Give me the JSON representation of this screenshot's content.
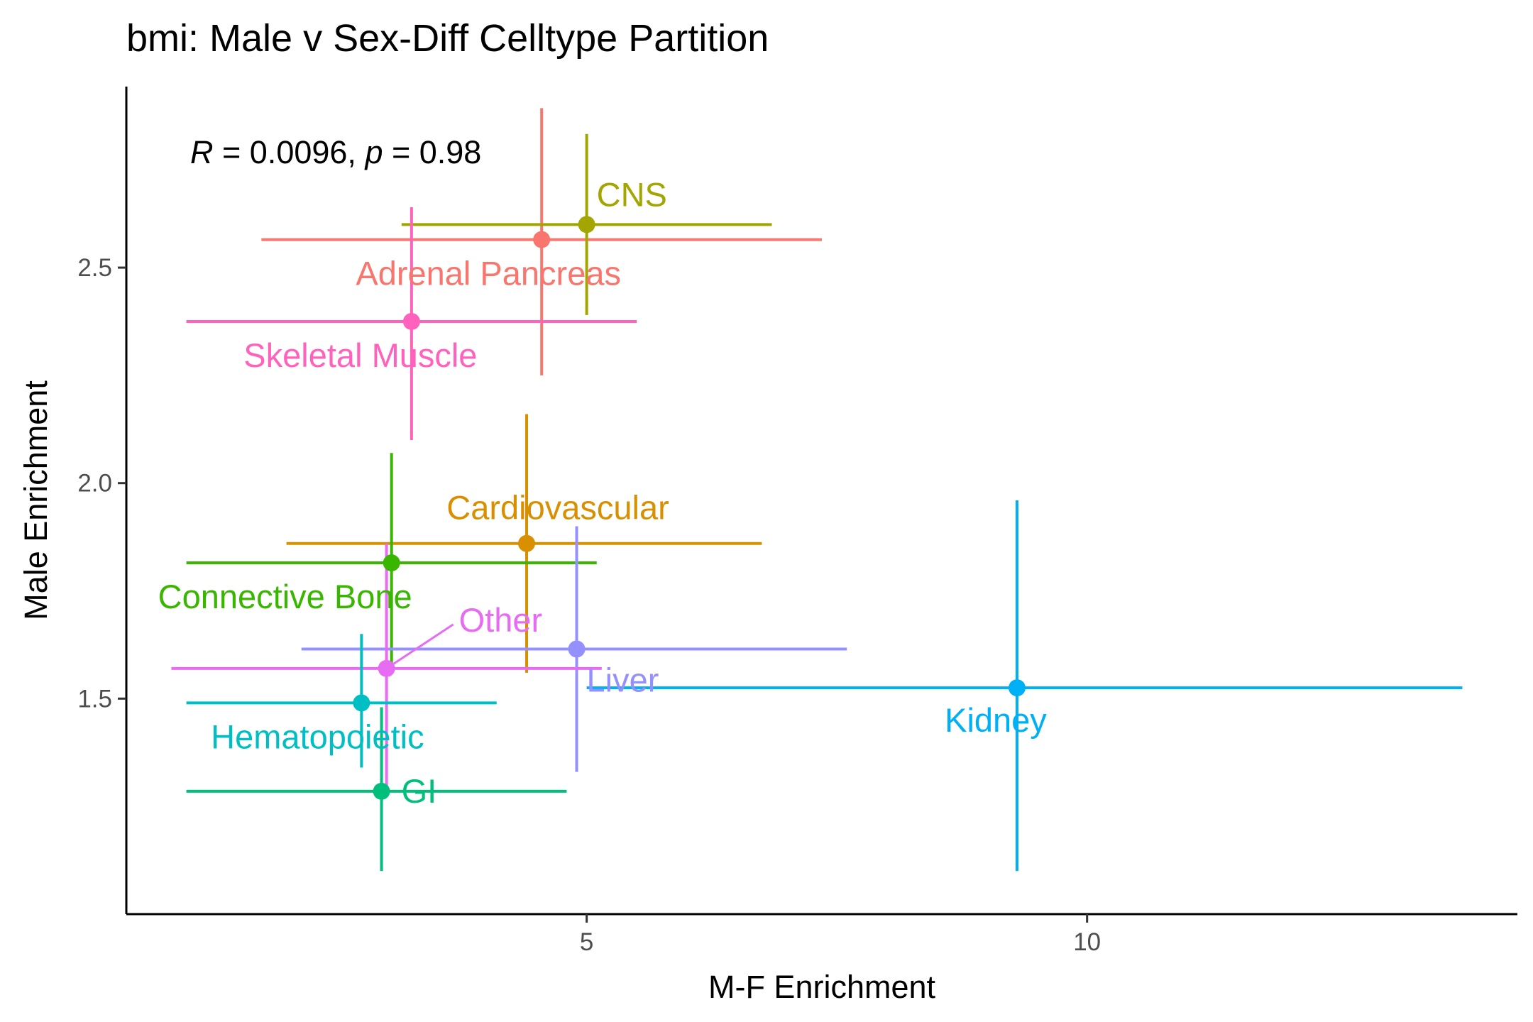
{
  "chart_data": {
    "type": "scatter",
    "title": "bmi: Male v Sex-Diff Celltype Partition",
    "xlabel": "M-F Enrichment",
    "ylabel": "Male Enrichment",
    "xlim": [
      0.4,
      14.3
    ],
    "ylim": [
      1.0,
      2.92
    ],
    "xticks": [
      5,
      10
    ],
    "xtick_labels": [
      "5",
      "10"
    ],
    "yticks": [
      1.5,
      2.0,
      2.5
    ],
    "ytick_labels": [
      "1.5",
      "2.0",
      "2.5"
    ],
    "grid": false,
    "legend": "none",
    "annotation": {
      "r_symbol": "R",
      "r_text": " = 0.0096, ",
      "p_symbol": "p",
      "p_text": " = 0.98"
    },
    "points": [
      {
        "label": "Adrenal Pancreas",
        "x": 4.55,
        "y": 2.565,
        "x_low": 1.75,
        "x_high": 7.35,
        "y_low": 2.25,
        "y_high": 2.87,
        "color": "#F8766D",
        "label_pos": "below"
      },
      {
        "label": "CNS",
        "x": 5.0,
        "y": 2.6,
        "x_low": 3.15,
        "x_high": 6.85,
        "y_low": 2.39,
        "y_high": 2.81,
        "color": "#A3A500",
        "label_pos": "above-right"
      },
      {
        "label": "Skeletal Muscle",
        "x": 3.25,
        "y": 2.375,
        "x_low": 1.0,
        "x_high": 5.5,
        "y_low": 2.1,
        "y_high": 2.64,
        "color": "#FF62BC",
        "label_pos": "below-left"
      },
      {
        "label": "Cardiovascular",
        "x": 4.4,
        "y": 1.86,
        "x_low": 2.0,
        "x_high": 6.75,
        "y_low": 1.56,
        "y_high": 2.16,
        "color": "#D89000",
        "label_pos": "above"
      },
      {
        "label": "Connective Bone",
        "x": 3.05,
        "y": 1.815,
        "x_low": 1.0,
        "x_high": 5.1,
        "y_low": 1.56,
        "y_high": 2.07,
        "color": "#39B600",
        "label_pos": "below-left"
      },
      {
        "label": "Liver",
        "x": 4.9,
        "y": 1.615,
        "x_low": 2.15,
        "x_high": 7.6,
        "y_low": 1.33,
        "y_high": 1.9,
        "color": "#9590FF",
        "label_pos": "below-right"
      },
      {
        "label": "Other",
        "x": 3.0,
        "y": 1.57,
        "x_low": 0.85,
        "x_high": 5.15,
        "y_low": 1.28,
        "y_high": 1.86,
        "color": "#E76BF3",
        "label_pos": "above-right"
      },
      {
        "label": "Kidney",
        "x": 9.3,
        "y": 1.525,
        "x_low": 5.0,
        "x_high": 13.75,
        "y_low": 1.1,
        "y_high": 1.96,
        "color": "#00B0F6",
        "label_pos": "below"
      },
      {
        "label": "Hematopoietic",
        "x": 2.75,
        "y": 1.49,
        "x_low": 1.0,
        "x_high": 4.1,
        "y_low": 1.34,
        "y_high": 1.65,
        "color": "#00BFC4",
        "label_pos": "below-left"
      },
      {
        "label": "GI",
        "x": 2.95,
        "y": 1.285,
        "x_low": 1.0,
        "x_high": 4.8,
        "y_low": 1.1,
        "y_high": 1.48,
        "color": "#00BF7D",
        "label_pos": "right"
      }
    ]
  }
}
